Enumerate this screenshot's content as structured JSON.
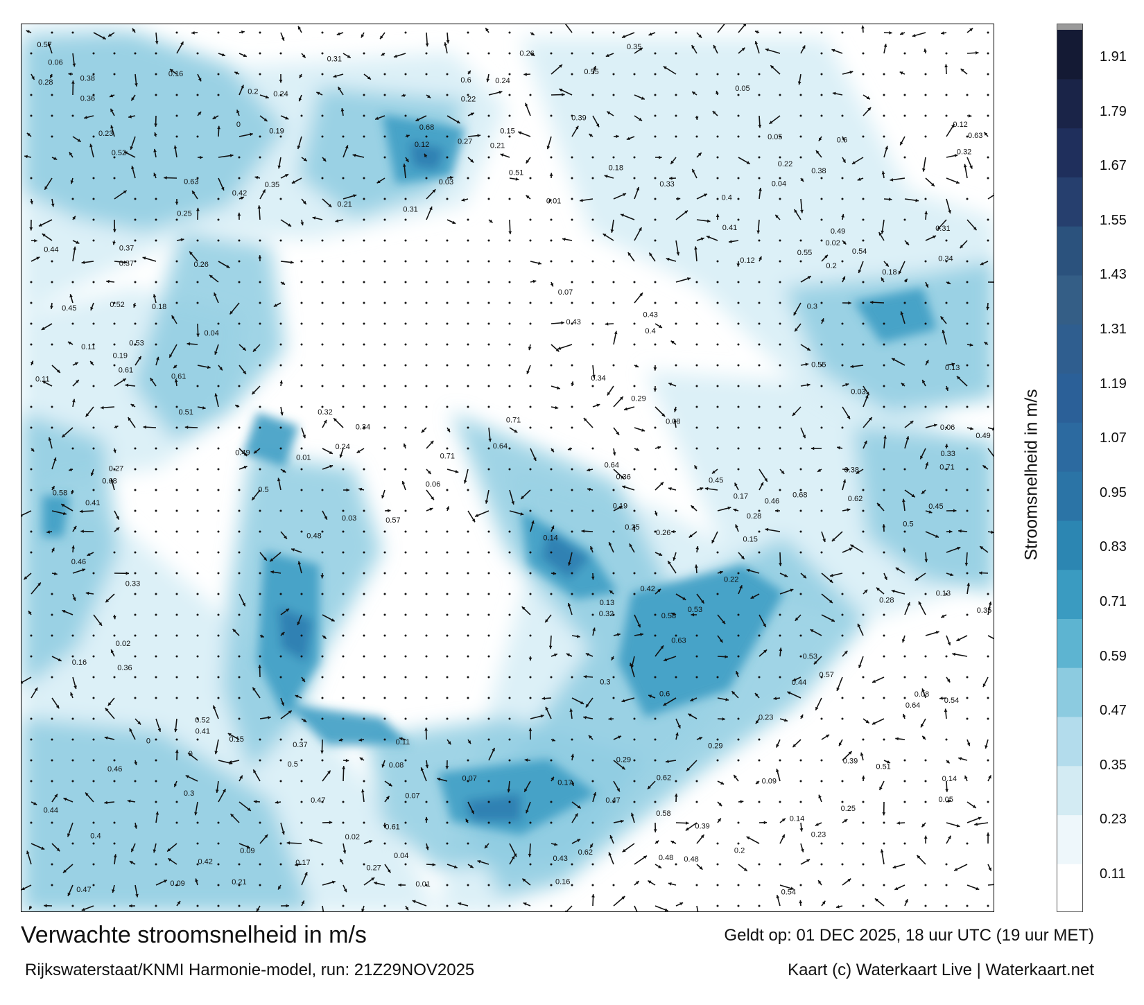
{
  "title": "Verwachte stroomsnelheid in m/s",
  "subtitle": "Rijkswaterstaat/KNMI Harmonie-model, run: 21Z29NOV2025",
  "valid_time": "Geldt op: 01 DEC 2025, 18 uur UTC (19 uur MET)",
  "credit": "Kaart (c) Waterkaart Live | Waterkaart.net",
  "colorbar": {
    "label": "Stroomsnelheid in m/s",
    "ticks": [
      "1.91",
      "1.79",
      "1.67",
      "1.55",
      "1.43",
      "1.31",
      "1.19",
      "1.07",
      "0.95",
      "0.83",
      "0.71",
      "0.59",
      "0.47",
      "0.35",
      "0.23",
      "0.11"
    ],
    "colors": [
      "#ffffff",
      "#eef7fb",
      "#d3ebf3",
      "#b3dcec",
      "#8ccbe0",
      "#5db4d1",
      "#3a9bc1",
      "#2c86b2",
      "#2b74a6",
      "#2c6aa0",
      "#2b6098",
      "#2f5e8f",
      "#345e86",
      "#2b527d",
      "#263f6e",
      "#1f2f5c",
      "#1a2448",
      "#141a34"
    ],
    "top_color": "#9a9a9a"
  },
  "map": {
    "water_color": "#ffffff",
    "current_colors": {
      "weak": "#d8eef6",
      "moderate": "#8fcde2",
      "strong": "#3d9dc4",
      "stronger": "#2b7bb0"
    },
    "speed_labels": [
      "0.11",
      "0.13",
      "0.16",
      "0.15",
      "0.06",
      "0.25",
      "0.24",
      "0.23",
      "0.14",
      "0.17",
      "0.19",
      "0.22",
      "0.21",
      "0.18",
      "0.12",
      "0.2",
      "0.26",
      "0.31",
      "0.28",
      "0.3",
      "0.32",
      "0.29",
      "0.27",
      "0.4",
      "0.45",
      "0.43",
      "0.33",
      "0.49",
      "0.51",
      "0.57",
      "0.34",
      "0.38",
      "0.36",
      "0.47",
      "0.42",
      "0.35",
      "0.39",
      "0.41",
      "0.46",
      "0.5",
      "0.55",
      "0.62",
      "0.68",
      "0.64",
      "0.54",
      "0.58",
      "0.61",
      "0.37",
      "0.44",
      "0.52",
      "0.53",
      "0.48",
      "0.6",
      "0.63",
      "0.71",
      "0.09",
      "0.08",
      "0.07",
      "0.05",
      "0.04",
      "0.03",
      "0.02",
      "0.01",
      "0"
    ]
  }
}
